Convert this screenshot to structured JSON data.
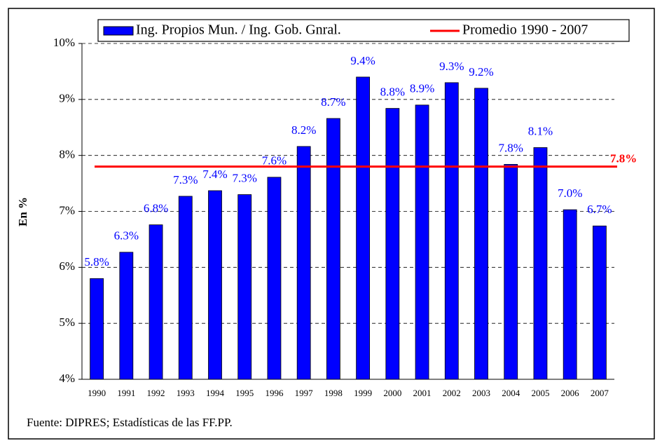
{
  "chart_data": {
    "type": "bar",
    "y_label": "En %",
    "source": "Fuente: DIPRES; Estadísticas de las FF.PP.",
    "categories": [
      "1990",
      "1991",
      "1992",
      "1993",
      "1994",
      "1995",
      "1996",
      "1997",
      "1998",
      "1999",
      "2000",
      "2001",
      "2002",
      "2003",
      "2004",
      "2005",
      "2006",
      "2007"
    ],
    "series": [
      {
        "name": "Ing. Propios Mun. / Ing. Gob. Gnral.",
        "color": "#0000ff",
        "values": [
          5.8,
          6.27,
          6.76,
          7.27,
          7.37,
          7.3,
          7.61,
          8.16,
          8.66,
          9.4,
          8.84,
          8.9,
          9.3,
          9.2,
          7.84,
          8.14,
          7.03,
          6.74
        ],
        "value_labels": [
          "5.8%",
          "6.3%",
          "6.8%",
          "7.3%",
          "7.4%",
          "7.3%",
          "7.6%",
          "8.2%",
          "8.7%",
          "9.4%",
          "8.8%",
          "8.9%",
          "9.3%",
          "9.2%",
          "7.8%",
          "8.1%",
          "7.0%",
          "6.7%"
        ]
      }
    ],
    "average": {
      "name": "Promedio 1990 - 2007",
      "color": "#ff0000",
      "value": 7.8,
      "value_label": "7.8%"
    },
    "ylim": [
      4,
      10
    ],
    "yticks": [
      {
        "value": 4,
        "label": "4%"
      },
      {
        "value": 5,
        "label": "5%"
      },
      {
        "value": 6,
        "label": "6%"
      },
      {
        "value": 7,
        "label": "7%"
      },
      {
        "value": 8,
        "label": "8%"
      },
      {
        "value": 9,
        "label": "9%"
      },
      {
        "value": 10,
        "label": "10%"
      }
    ],
    "grid": true
  }
}
